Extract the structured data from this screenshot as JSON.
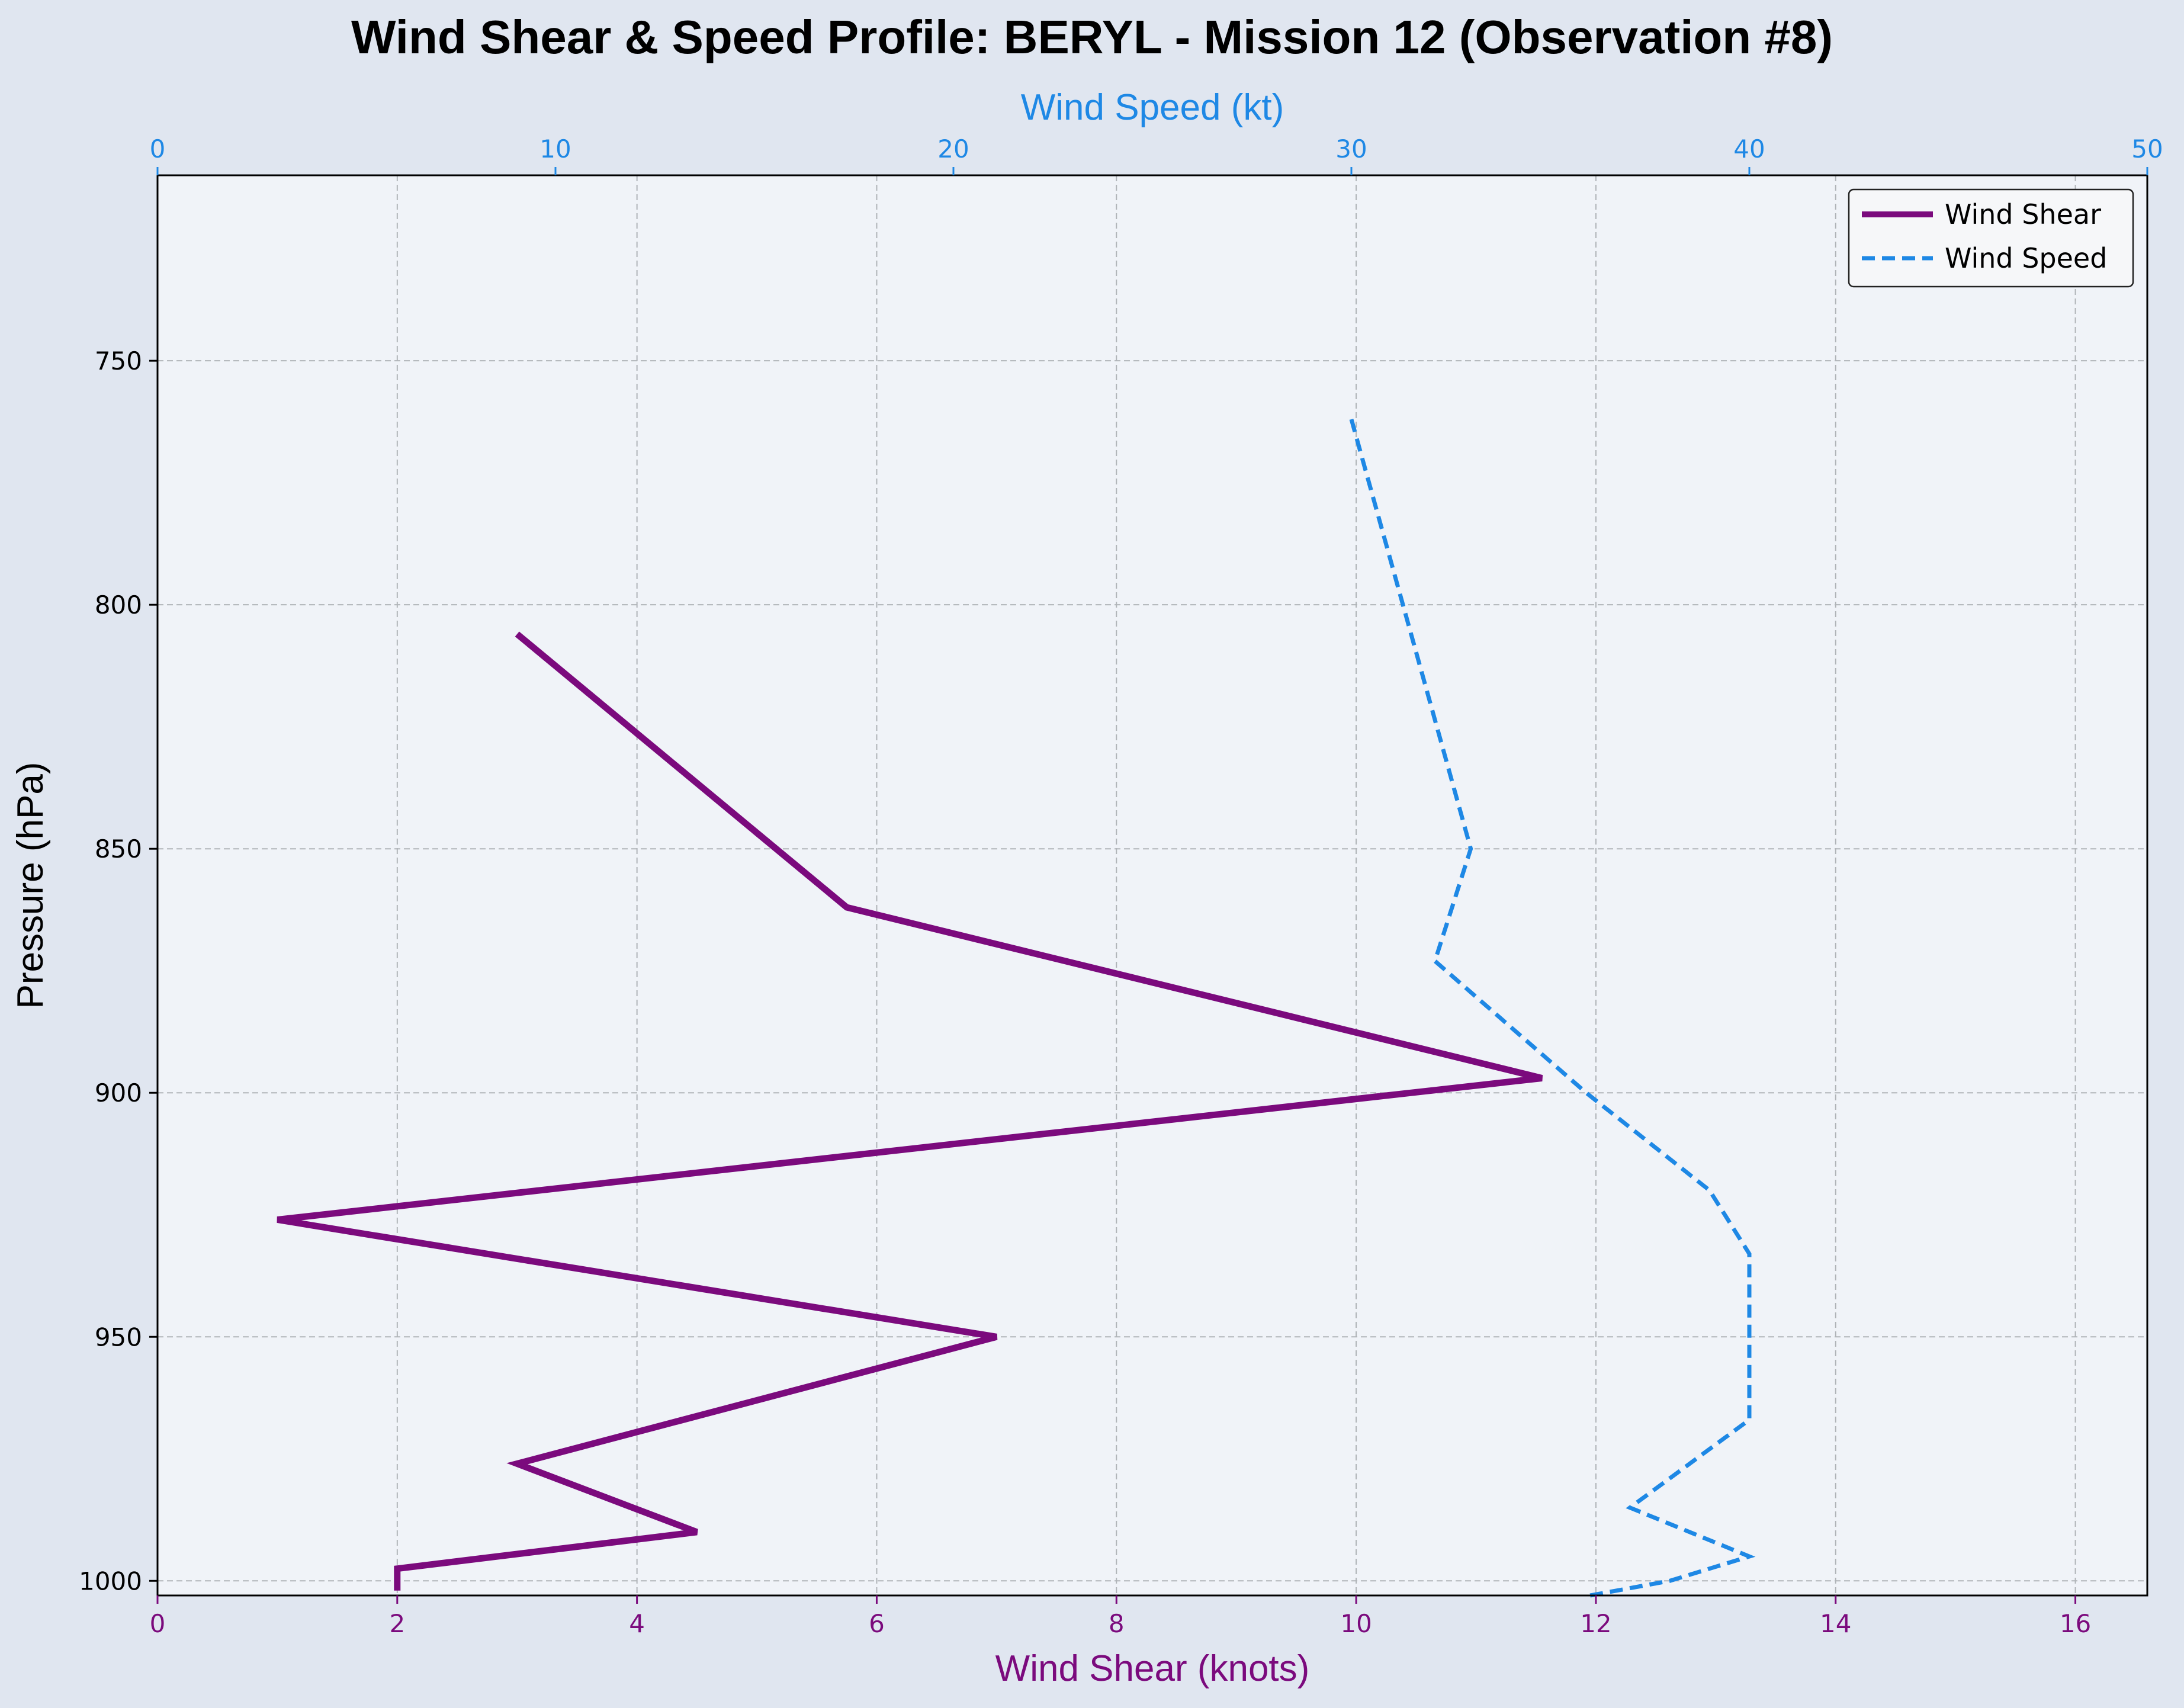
{
  "chart_data": {
    "type": "line",
    "title": "Wind Shear & Speed Profile: BERYL - Mission 12 (Observation #8)",
    "xlabel_bottom": "Wind Shear (knots)",
    "xlabel_top": "Wind Speed (kt)",
    "ylabel": "Pressure (hPa)",
    "x_bottom_lim": [
      0,
      16.6
    ],
    "x_bottom_ticks": [
      0,
      2,
      4,
      6,
      8,
      10,
      12,
      14,
      16
    ],
    "x_top_lim": [
      0,
      50
    ],
    "x_top_ticks": [
      0,
      10,
      20,
      30,
      40,
      50
    ],
    "ylim": [
      1003,
      712
    ],
    "y_inverted": true,
    "y_ticks": [
      750,
      800,
      850,
      900,
      950,
      1000
    ],
    "grid": true,
    "legend_position": "top-right",
    "series": [
      {
        "name": "Wind Shear",
        "axis": "bottom",
        "color": "#7b0a7d",
        "style": "solid",
        "points": [
          {
            "y": 806,
            "x": 3.0
          },
          {
            "y": 862,
            "x": 5.75
          },
          {
            "y": 897,
            "x": 11.55
          },
          {
            "y": 926,
            "x": 1.0
          },
          {
            "y": 950,
            "x": 7.0
          },
          {
            "y": 976,
            "x": 3.0
          },
          {
            "y": 990,
            "x": 4.5
          },
          {
            "y": 997.5,
            "x": 2.0
          },
          {
            "y": 1002,
            "x": 2.0
          }
        ]
      },
      {
        "name": "Wind Speed",
        "axis": "top",
        "color": "#1e88e5",
        "style": "dashed",
        "points": [
          {
            "y": 762,
            "x": 30.0
          },
          {
            "y": 850,
            "x": 33.0
          },
          {
            "y": 873,
            "x": 32.1
          },
          {
            "y": 900,
            "x": 35.9
          },
          {
            "y": 920,
            "x": 39.0
          },
          {
            "y": 933,
            "x": 40.0
          },
          {
            "y": 967,
            "x": 40.0
          },
          {
            "y": 985,
            "x": 37.0
          },
          {
            "y": 995,
            "x": 40.0
          },
          {
            "y": 1000,
            "x": 38.0
          },
          {
            "y": 1003,
            "x": 36.0
          }
        ]
      }
    ],
    "colors": {
      "shear_axis": "#7b0a7d",
      "speed_axis": "#1e88e5",
      "plot_bg": "#f0f3f8",
      "fig_bg": "#e0e6f0",
      "grid": "#b0b4b8"
    }
  }
}
